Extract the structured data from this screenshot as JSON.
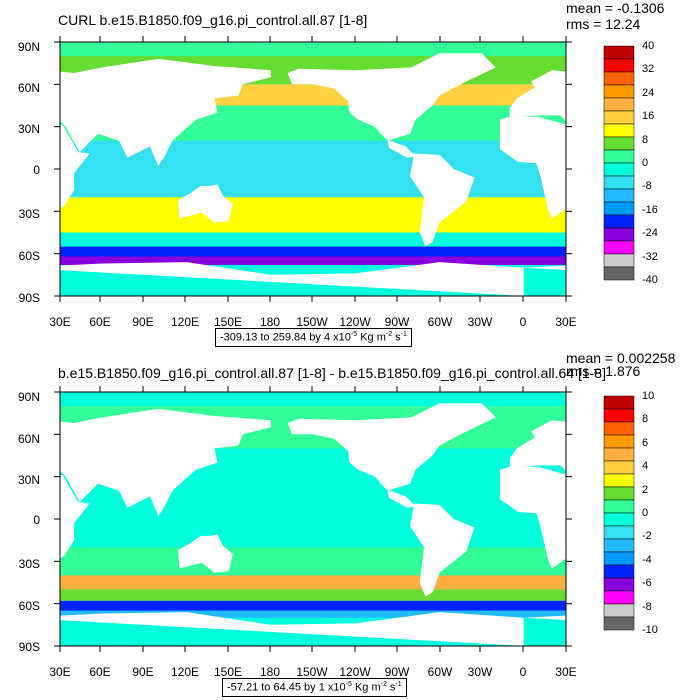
{
  "colormap": [
    "#c00000",
    "#ff0000",
    "#ff6600",
    "#ff9900",
    "#ffb040",
    "#ffd040",
    "#ffff00",
    "#66dd33",
    "#33ff99",
    "#00ffdd",
    "#33e0f0",
    "#22bbff",
    "#0099ff",
    "#0022ff",
    "#8800dd",
    "#ff00ff",
    "#cccccc",
    "#666666"
  ],
  "land_color": "#ffffff",
  "chart_data": [
    {
      "type": "map",
      "title": "CURL b.e15.B1850.f09_g16.pi_control.all.87 [1-8]",
      "stats": {
        "mean": "mean = -0.1306",
        "rms": "rms = 12.24"
      },
      "range_text": "-309.13 to 259.84 by 4 x10",
      "range_exp": "-5",
      "range_units": "Kg m",
      "range_units_exp": "-2",
      "range_tail": " s",
      "range_tail_exp": "-1",
      "lat_labels": [
        "90N",
        "60N",
        "30N",
        "0",
        "30S",
        "60S",
        "90S"
      ],
      "lon_labels": [
        "30E",
        "60E",
        "90E",
        "120E",
        "150E",
        "180",
        "150W",
        "120W",
        "90W",
        "60W",
        "30W",
        "0",
        "30E"
      ],
      "colorbar_labels": [
        "40",
        "32",
        "24",
        "16",
        "8",
        "0",
        "-8",
        "-16",
        "-24",
        "-32",
        "-40"
      ],
      "bands": [
        {
          "lat_from": 90,
          "lat_to": 80,
          "level": 8
        },
        {
          "lat_from": 80,
          "lat_to": 60,
          "level": 7
        },
        {
          "lat_from": 60,
          "lat_to": 45,
          "level": 5
        },
        {
          "lat_from": 45,
          "lat_to": 20,
          "level": 8
        },
        {
          "lat_from": 20,
          "lat_to": -20,
          "level": 10
        },
        {
          "lat_from": -20,
          "lat_to": -45,
          "level": 6
        },
        {
          "lat_from": -45,
          "lat_to": -55,
          "level": 9
        },
        {
          "lat_from": -55,
          "lat_to": -62,
          "level": 13
        },
        {
          "lat_from": -62,
          "lat_to": -68,
          "level": 14
        }
      ]
    },
    {
      "type": "map",
      "title": "b.e15.B1850.f09_g16.pi_control.all.87 [1-8] - b.e15.B1850.f09_g16.pi_control.all.64 [1-8]",
      "stats": {
        "mean": "mean = 0.002258",
        "rms": "rms = 1.876"
      },
      "range_text": "-57.21 to 64.45 by 1 x10",
      "range_exp": "-5",
      "range_units": "Kg m",
      "range_units_exp": "-2",
      "range_tail": " s",
      "range_tail_exp": "-1",
      "lat_labels": [
        "90N",
        "60N",
        "30N",
        "0",
        "30S",
        "60S",
        "90S"
      ],
      "lon_labels": [
        "30E",
        "60E",
        "90E",
        "120E",
        "150E",
        "180",
        "150W",
        "120W",
        "90W",
        "60W",
        "30W",
        "0",
        "30E"
      ],
      "colorbar_labels": [
        "10",
        "8",
        "6",
        "4",
        "2",
        "0",
        "-2",
        "-4",
        "-6",
        "-8",
        "-10"
      ],
      "bands": [
        {
          "lat_from": 90,
          "lat_to": 80,
          "level": 9
        },
        {
          "lat_from": 80,
          "lat_to": 50,
          "level": 8
        },
        {
          "lat_from": 50,
          "lat_to": 20,
          "level": 9
        },
        {
          "lat_from": 20,
          "lat_to": -20,
          "level": 9
        },
        {
          "lat_from": -20,
          "lat_to": -40,
          "level": 8
        },
        {
          "lat_from": -40,
          "lat_to": -50,
          "level": 4
        },
        {
          "lat_from": -50,
          "lat_to": -58,
          "level": 7
        },
        {
          "lat_from": -58,
          "lat_to": -65,
          "level": 13
        },
        {
          "lat_from": -65,
          "lat_to": -70,
          "level": 11
        }
      ]
    }
  ]
}
